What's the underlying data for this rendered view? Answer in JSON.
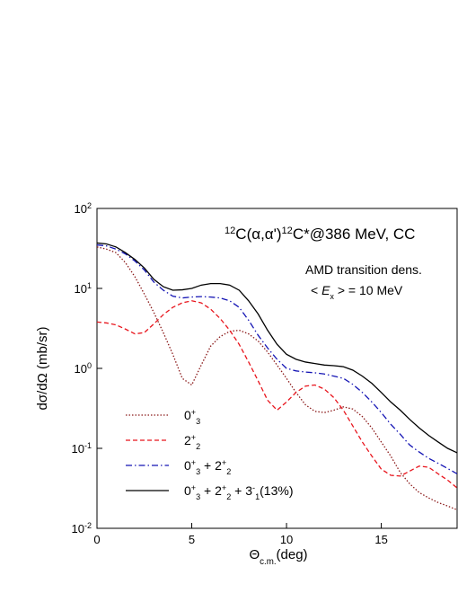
{
  "chart_data": {
    "type": "line",
    "title": [
      {
        "text": "12",
        "pos": "sup"
      },
      {
        "text": "C(α,α')"
      },
      {
        "text": "12",
        "pos": "sup"
      },
      {
        "text": "C*@386 MeV, CC"
      }
    ],
    "annotations": [
      [
        {
          "text": "AMD transition dens."
        }
      ],
      [
        {
          "text": "< "
        },
        {
          "text": "E",
          "pos": "italic"
        },
        {
          "text": "x",
          "pos": "sub"
        },
        {
          "text": " > = 10 MeV"
        }
      ]
    ],
    "x_label": [
      {
        "text": "Θ"
      },
      {
        "text": "c.m.",
        "pos": "sub"
      },
      {
        "text": "(deg)"
      }
    ],
    "y_label": [
      {
        "text": "dσ/dΩ (mb/sr)"
      }
    ],
    "x": [
      0,
      0.5,
      1,
      1.5,
      2,
      2.5,
      3,
      3.5,
      4,
      4.5,
      5,
      5.5,
      6,
      6.5,
      7,
      7.5,
      8,
      8.5,
      9,
      9.5,
      10,
      10.5,
      11,
      11.5,
      12,
      12.5,
      13,
      13.5,
      14,
      14.5,
      15,
      15.5,
      16,
      16.5,
      17,
      17.5,
      18,
      18.5,
      19
    ],
    "series": [
      {
        "name": [
          {
            "text": "0"
          },
          {
            "text": "+",
            "pos": "sup"
          },
          {
            "text": "3",
            "pos": "sub"
          }
        ],
        "color": "#8b1a1a",
        "dash": "1.5,2",
        "values": [
          33,
          31,
          28,
          21,
          14,
          8.5,
          5,
          2.8,
          1.5,
          0.75,
          0.62,
          1.1,
          1.9,
          2.5,
          2.9,
          3.0,
          2.7,
          2.2,
          1.6,
          1.1,
          0.75,
          0.5,
          0.35,
          0.29,
          0.28,
          0.3,
          0.33,
          0.31,
          0.25,
          0.18,
          0.12,
          0.08,
          0.05,
          0.036,
          0.028,
          0.024,
          0.021,
          0.019,
          0.017
        ]
      },
      {
        "name": [
          {
            "text": "2"
          },
          {
            "text": "+",
            "pos": "sup"
          },
          {
            "text": "2",
            "pos": "sub"
          }
        ],
        "color": "#e8141c",
        "dash": "5,3",
        "values": [
          3.8,
          3.7,
          3.5,
          3.1,
          2.7,
          2.8,
          3.6,
          4.7,
          5.8,
          6.6,
          7.0,
          6.6,
          5.5,
          4.2,
          3.0,
          2.0,
          1.2,
          0.7,
          0.4,
          0.3,
          0.38,
          0.5,
          0.6,
          0.62,
          0.55,
          0.43,
          0.3,
          0.19,
          0.12,
          0.08,
          0.055,
          0.046,
          0.045,
          0.052,
          0.06,
          0.058,
          0.048,
          0.04,
          0.032
        ]
      },
      {
        "name": [
          {
            "text": "0"
          },
          {
            "text": "+",
            "pos": "sup"
          },
          {
            "text": "3",
            "pos": "sub"
          },
          {
            "text": " + 2"
          },
          {
            "text": "+",
            "pos": "sup"
          },
          {
            "text": "2",
            "pos": "sub"
          }
        ],
        "color": "#1414b4",
        "dash": "7,3,1.5,3",
        "values": [
          35,
          34,
          31,
          27,
          22,
          17,
          12,
          9.5,
          8.0,
          7.6,
          7.8,
          7.9,
          7.8,
          7.6,
          7.0,
          5.8,
          4.0,
          2.6,
          1.8,
          1.3,
          1.0,
          0.93,
          0.9,
          0.88,
          0.85,
          0.8,
          0.75,
          0.63,
          0.5,
          0.38,
          0.28,
          0.2,
          0.15,
          0.11,
          0.09,
          0.075,
          0.065,
          0.056,
          0.048
        ]
      },
      {
        "name": [
          {
            "text": "0"
          },
          {
            "text": "+",
            "pos": "sup"
          },
          {
            "text": "3",
            "pos": "sub"
          },
          {
            "text": " + 2"
          },
          {
            "text": "+",
            "pos": "sup"
          },
          {
            "text": "2",
            "pos": "sub"
          },
          {
            "text": " + 3"
          },
          {
            "text": "-",
            "pos": "sup"
          },
          {
            "text": "1",
            "pos": "sub"
          },
          {
            "text": "(13%)"
          }
        ],
        "color": "#000000",
        "dash": "none",
        "values": [
          37,
          36,
          33,
          28,
          23,
          18,
          13,
          10.5,
          9.5,
          9.6,
          10,
          11,
          11.5,
          11.5,
          11,
          9.5,
          7,
          4.8,
          3.0,
          2.0,
          1.5,
          1.3,
          1.2,
          1.15,
          1.1,
          1.08,
          1.05,
          0.95,
          0.8,
          0.65,
          0.5,
          0.38,
          0.3,
          0.23,
          0.18,
          0.145,
          0.12,
          0.1,
          0.088
        ]
      }
    ],
    "xlim": [
      0,
      19
    ],
    "xticks": [
      0,
      5,
      10,
      15
    ],
    "ylim": [
      0.01,
      100
    ],
    "ylog": true,
    "yticks": [
      {
        "value": 0.01,
        "label": "10",
        "sup": "-2"
      },
      {
        "value": 0.1,
        "label": "10",
        "sup": "-1"
      },
      {
        "value": 1,
        "label": "10",
        "sup": "0"
      },
      {
        "value": 10,
        "label": "10",
        "sup": "1"
      },
      {
        "value": 100,
        "label": "10",
        "sup": "2"
      }
    ],
    "legend": "lower-left"
  }
}
